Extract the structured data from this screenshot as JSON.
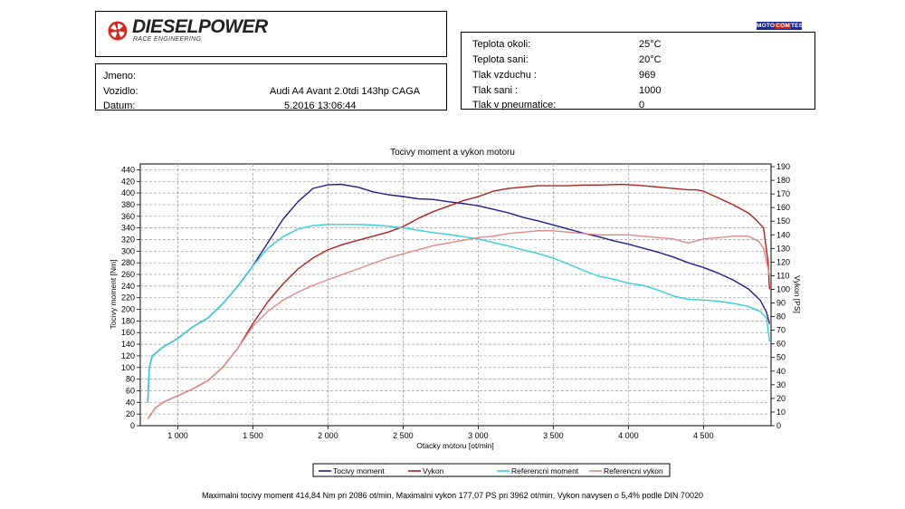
{
  "header": {
    "brand": "DIESELPOWER",
    "brand_sub": "RACE ENGINEERING",
    "badge_left": "MOTO",
    "badge_mid": "COM",
    "badge_right": "TEST"
  },
  "info": {
    "jmeno_label": "Jmeno:",
    "jmeno_value": "",
    "vozidlo_label": "Vozidlo:",
    "vozidlo_value": "Audi A4 Avant 2.0tdi 143hp CAGA",
    "datum_label": "Datum:",
    "datum_value": "5.2016 13:06:44"
  },
  "conditions": [
    {
      "label": "Teplota okoli:",
      "value": "25°C"
    },
    {
      "label": "Teplota sani:",
      "value": "20°C"
    },
    {
      "label": "Tlak vzduchu :",
      "value": "969"
    },
    {
      "label": "Tlak sani :",
      "value": "1000"
    },
    {
      "label": "Tlak v pneumatice:",
      "value": "0"
    }
  ],
  "footer": {
    "text": "Maximalni tocivy moment 414,84 Nm pri 2086 ot/min,  Maximalni vykon 177,07 PS pri 3962 ot/min,  Vykon navysen o 5,4% podle DIN 70020"
  },
  "chart_data": {
    "type": "line",
    "title": "Tocivy moment a vykon motoru",
    "xlabel": "Otacky motoru [ot/min]",
    "ylabel": "Tocivy moment [Nm]",
    "y2label": "Vykon [PS]",
    "xlim": [
      750,
      4950
    ],
    "ylim": [
      0,
      450
    ],
    "y2lim": [
      0,
      192
    ],
    "x_ticks": [
      1000,
      1500,
      2000,
      2500,
      3000,
      3500,
      4000,
      4500
    ],
    "x_tick_labels": [
      "1 000",
      "1 500",
      "2 000",
      "2 500",
      "3 000",
      "3 500",
      "4 000",
      "4 500"
    ],
    "y_ticks": [
      0,
      20,
      40,
      60,
      80,
      100,
      120,
      140,
      160,
      180,
      200,
      220,
      240,
      260,
      280,
      300,
      320,
      340,
      360,
      380,
      400,
      420,
      440
    ],
    "y2_ticks": [
      0,
      10,
      20,
      30,
      40,
      50,
      60,
      70,
      80,
      90,
      100,
      110,
      120,
      130,
      140,
      150,
      160,
      170,
      180,
      190
    ],
    "grid": true,
    "legend_position": "bottom",
    "series": [
      {
        "name": "Tocivy moment",
        "axis": "left",
        "color": "#1f1f8f",
        "points": [
          [
            800,
            40
          ],
          [
            810,
            100
          ],
          [
            830,
            120
          ],
          [
            900,
            135
          ],
          [
            1000,
            150
          ],
          [
            1100,
            170
          ],
          [
            1200,
            185
          ],
          [
            1300,
            210
          ],
          [
            1400,
            240
          ],
          [
            1500,
            275
          ],
          [
            1600,
            315
          ],
          [
            1700,
            355
          ],
          [
            1800,
            385
          ],
          [
            1900,
            408
          ],
          [
            2000,
            414
          ],
          [
            2086,
            415
          ],
          [
            2200,
            410
          ],
          [
            2300,
            402
          ],
          [
            2400,
            397
          ],
          [
            2500,
            394
          ],
          [
            2600,
            390
          ],
          [
            2700,
            389
          ],
          [
            2800,
            385
          ],
          [
            2900,
            382
          ],
          [
            3000,
            378
          ],
          [
            3100,
            372
          ],
          [
            3200,
            366
          ],
          [
            3300,
            358
          ],
          [
            3400,
            352
          ],
          [
            3500,
            345
          ],
          [
            3600,
            338
          ],
          [
            3700,
            331
          ],
          [
            3800,
            325
          ],
          [
            3900,
            318
          ],
          [
            4000,
            312
          ],
          [
            4100,
            305
          ],
          [
            4200,
            298
          ],
          [
            4300,
            290
          ],
          [
            4400,
            280
          ],
          [
            4500,
            272
          ],
          [
            4600,
            262
          ],
          [
            4700,
            250
          ],
          [
            4800,
            235
          ],
          [
            4880,
            215
          ],
          [
            4920,
            195
          ],
          [
            4940,
            175
          ]
        ]
      },
      {
        "name": "Vykon",
        "axis": "right",
        "color": "#b02020",
        "points": [
          [
            800,
            5
          ],
          [
            850,
            13
          ],
          [
            900,
            17
          ],
          [
            1000,
            22
          ],
          [
            1100,
            27
          ],
          [
            1200,
            33
          ],
          [
            1300,
            43
          ],
          [
            1400,
            57
          ],
          [
            1500,
            75
          ],
          [
            1600,
            91
          ],
          [
            1700,
            104
          ],
          [
            1800,
            115
          ],
          [
            1900,
            123
          ],
          [
            2000,
            129
          ],
          [
            2100,
            133
          ],
          [
            2200,
            136
          ],
          [
            2300,
            139
          ],
          [
            2400,
            142
          ],
          [
            2500,
            146
          ],
          [
            2600,
            152
          ],
          [
            2700,
            157
          ],
          [
            2800,
            161
          ],
          [
            2900,
            165
          ],
          [
            3000,
            168
          ],
          [
            3100,
            172
          ],
          [
            3200,
            174
          ],
          [
            3300,
            175
          ],
          [
            3400,
            176
          ],
          [
            3500,
            176
          ],
          [
            3600,
            176
          ],
          [
            3700,
            176.5
          ],
          [
            3800,
            176.5
          ],
          [
            3962,
            177
          ],
          [
            4100,
            176
          ],
          [
            4200,
            175
          ],
          [
            4300,
            174
          ],
          [
            4400,
            173
          ],
          [
            4450,
            173
          ],
          [
            4500,
            172
          ],
          [
            4600,
            167
          ],
          [
            4700,
            162
          ],
          [
            4800,
            156
          ],
          [
            4850,
            151
          ],
          [
            4900,
            145
          ],
          [
            4930,
            120
          ],
          [
            4940,
            100
          ]
        ]
      },
      {
        "name": "Referencni moment",
        "axis": "left",
        "color": "#30d0d8",
        "points": [
          [
            800,
            40
          ],
          [
            810,
            100
          ],
          [
            830,
            120
          ],
          [
            900,
            135
          ],
          [
            1000,
            150
          ],
          [
            1100,
            170
          ],
          [
            1200,
            185
          ],
          [
            1300,
            210
          ],
          [
            1400,
            240
          ],
          [
            1500,
            275
          ],
          [
            1600,
            305
          ],
          [
            1700,
            325
          ],
          [
            1800,
            338
          ],
          [
            1900,
            344
          ],
          [
            2000,
            346
          ],
          [
            2100,
            346
          ],
          [
            2200,
            346
          ],
          [
            2300,
            345
          ],
          [
            2400,
            343
          ],
          [
            2500,
            340
          ],
          [
            2600,
            336
          ],
          [
            2700,
            332
          ],
          [
            2800,
            329
          ],
          [
            2900,
            325
          ],
          [
            3000,
            321
          ],
          [
            3100,
            315
          ],
          [
            3200,
            309
          ],
          [
            3300,
            302
          ],
          [
            3400,
            296
          ],
          [
            3500,
            288
          ],
          [
            3600,
            278
          ],
          [
            3700,
            267
          ],
          [
            3800,
            257
          ],
          [
            3900,
            252
          ],
          [
            4000,
            245
          ],
          [
            4100,
            241
          ],
          [
            4200,
            233
          ],
          [
            4300,
            223
          ],
          [
            4400,
            217
          ],
          [
            4500,
            216
          ],
          [
            4600,
            214
          ],
          [
            4700,
            210
          ],
          [
            4800,
            205
          ],
          [
            4880,
            196
          ],
          [
            4920,
            185
          ],
          [
            4940,
            145
          ]
        ]
      },
      {
        "name": "Referencni vykon",
        "axis": "right",
        "color": "#e08888",
        "points": [
          [
            800,
            5
          ],
          [
            850,
            13
          ],
          [
            900,
            17
          ],
          [
            1000,
            22
          ],
          [
            1100,
            27
          ],
          [
            1200,
            33
          ],
          [
            1300,
            43
          ],
          [
            1400,
            57
          ],
          [
            1500,
            73
          ],
          [
            1600,
            84
          ],
          [
            1700,
            92
          ],
          [
            1800,
            98
          ],
          [
            1900,
            103
          ],
          [
            2000,
            107
          ],
          [
            2100,
            111
          ],
          [
            2200,
            115
          ],
          [
            2300,
            119
          ],
          [
            2400,
            123
          ],
          [
            2500,
            126
          ],
          [
            2600,
            129
          ],
          [
            2700,
            132
          ],
          [
            2800,
            134
          ],
          [
            2900,
            136
          ],
          [
            3000,
            138
          ],
          [
            3100,
            139
          ],
          [
            3200,
            141
          ],
          [
            3300,
            142
          ],
          [
            3400,
            143
          ],
          [
            3500,
            143
          ],
          [
            3600,
            142
          ],
          [
            3700,
            141
          ],
          [
            3800,
            140
          ],
          [
            3900,
            140
          ],
          [
            4000,
            140
          ],
          [
            4100,
            139
          ],
          [
            4200,
            138
          ],
          [
            4300,
            137
          ],
          [
            4400,
            134
          ],
          [
            4500,
            137
          ],
          [
            4600,
            138
          ],
          [
            4700,
            139
          ],
          [
            4800,
            139
          ],
          [
            4870,
            135
          ],
          [
            4900,
            130
          ],
          [
            4920,
            120
          ],
          [
            4940,
            110
          ]
        ]
      }
    ]
  }
}
